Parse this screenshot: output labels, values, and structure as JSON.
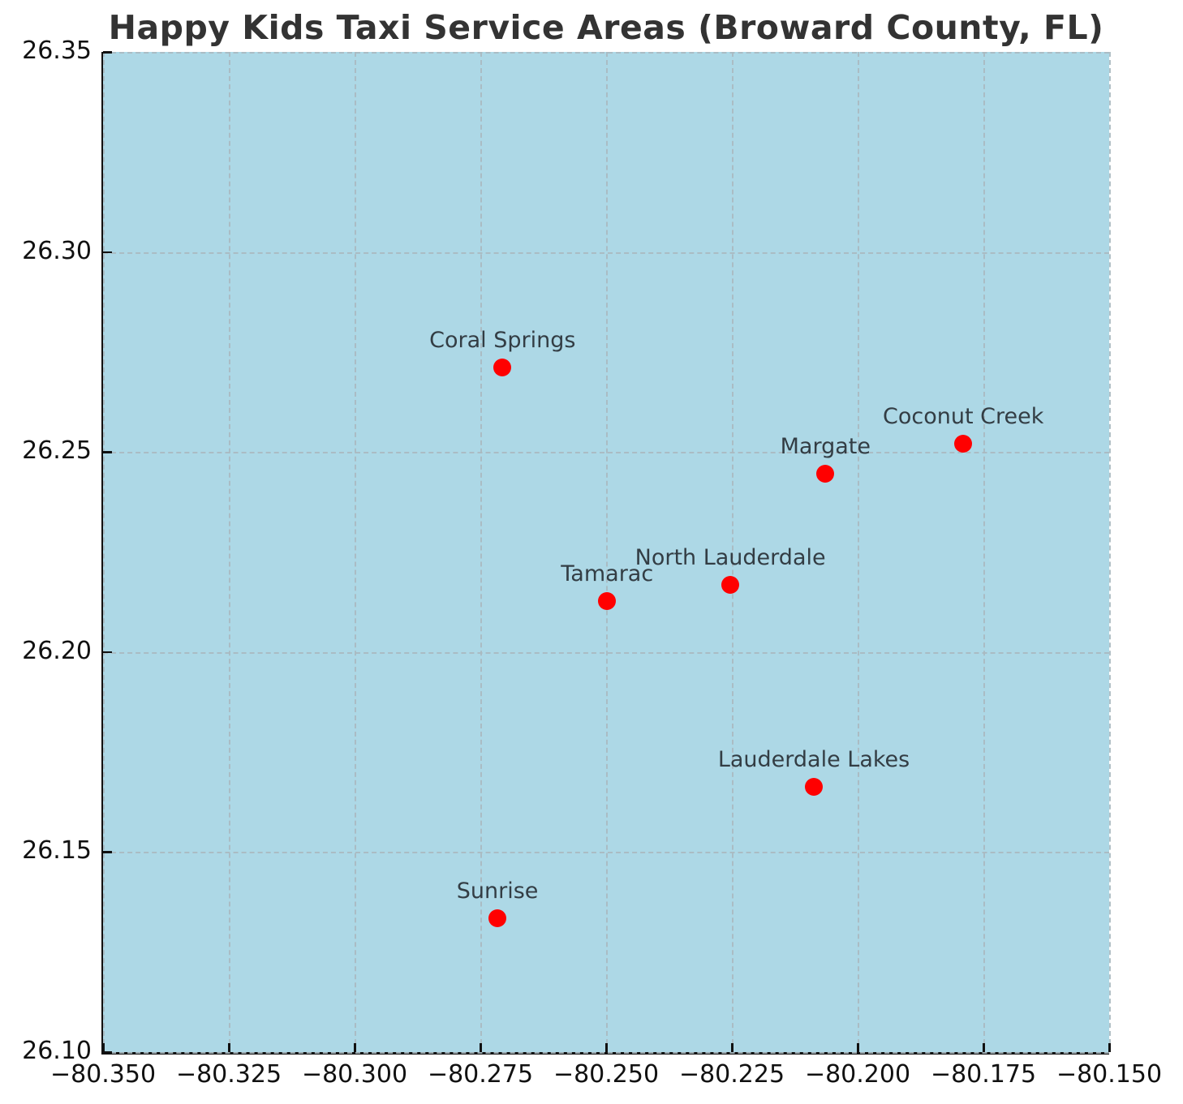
{
  "title": "Happy Kids Taxi Service Areas (Broward County, FL)",
  "chart_data": {
    "type": "scatter",
    "title": "Happy Kids Taxi Service Areas (Broward County, FL)",
    "xlabel": "",
    "ylabel": "",
    "xlim": [
      -80.35,
      -80.15
    ],
    "ylim": [
      26.1,
      26.35
    ],
    "x_ticks": [
      -80.35,
      -80.325,
      -80.3,
      -80.275,
      -80.25,
      -80.225,
      -80.2,
      -80.175,
      -80.15
    ],
    "x_tick_labels": [
      "−80.350",
      "−80.325",
      "−80.300",
      "−80.275",
      "−80.250",
      "−80.225",
      "−80.200",
      "−80.175",
      "−80.150"
    ],
    "y_ticks": [
      26.1,
      26.15,
      26.2,
      26.25,
      26.3,
      26.35
    ],
    "y_tick_labels": [
      "26.10",
      "26.15",
      "26.20",
      "26.25",
      "26.30",
      "26.35"
    ],
    "grid": {
      "visible": true,
      "style": "dashed"
    },
    "legend": "none",
    "points": [
      {
        "label": "Coral Springs",
        "lon": -80.2706,
        "lat": 26.2712
      },
      {
        "label": "Coconut Creek",
        "lon": -80.179,
        "lat": 26.252
      },
      {
        "label": "Margate",
        "lon": -80.2064,
        "lat": 26.2445
      },
      {
        "label": "North Lauderdale",
        "lon": -80.2253,
        "lat": 26.2168
      },
      {
        "label": "Tamarac",
        "lon": -80.2498,
        "lat": 26.2128
      },
      {
        "label": "Lauderdale Lakes",
        "lon": -80.2087,
        "lat": 26.1664
      },
      {
        "label": "Sunrise",
        "lon": -80.2716,
        "lat": 26.1335
      }
    ],
    "colors": {
      "figure_bg": "#ffffff",
      "plot_bg": "#ADD8E6",
      "point": "#FF0000",
      "grid": "#aab9c0",
      "spine": "#111111",
      "tick_text": "#111111",
      "title_text": "#333333",
      "point_label_text": "#333d44"
    }
  }
}
